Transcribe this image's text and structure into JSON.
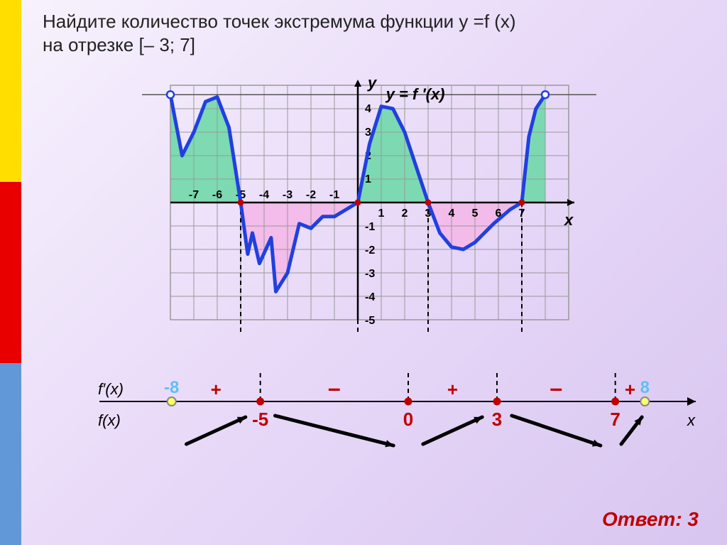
{
  "title_line1": "Найдите количество точек экстремума функции y =f (x)",
  "title_line2": "на отрезке [– 3; 7]",
  "answer": "Ответ: 3",
  "strip_colors": [
    "#ffde00",
    "#e80000",
    "#6098d8"
  ],
  "chart": {
    "type": "line",
    "grid_color": "#999999",
    "bg_color": "#ffffff",
    "curve_color": "#2040e0",
    "curve_width": 5,
    "fill_pos": "#70d8a8",
    "fill_neg": "#f4b8e8",
    "endpoint_open": "#ffffff",
    "endpoint_stroke": "#2040e0",
    "zero_dot": "#c00000",
    "x_range": [
      -8,
      9
    ],
    "y_range": [
      -5,
      5
    ],
    "cell": 33,
    "x_ticks": [
      -7,
      -6,
      -5,
      -4,
      -3,
      -2,
      -1,
      1,
      2,
      3,
      4,
      5,
      6,
      7
    ],
    "y_ticks_pos": [
      1,
      2,
      3,
      4
    ],
    "y_ticks_neg": [
      -1,
      -2,
      -3,
      -4,
      -5
    ],
    "axis_y_label": "y",
    "axis_x_label": "x",
    "curve_label": "y = f ′(x)",
    "curve_points": [
      [
        -8,
        4.6
      ],
      [
        -7.5,
        2.0
      ],
      [
        -7,
        3.0
      ],
      [
        -6.5,
        4.3
      ],
      [
        -6,
        4.5
      ],
      [
        -5.5,
        3.2
      ],
      [
        -5,
        0
      ],
      [
        -4.7,
        -2.2
      ],
      [
        -4.5,
        -1.3
      ],
      [
        -4.2,
        -2.6
      ],
      [
        -3.7,
        -1.5
      ],
      [
        -3.5,
        -3.8
      ],
      [
        -3,
        -3.0
      ],
      [
        -2.5,
        -0.9
      ],
      [
        -2,
        -1.1
      ],
      [
        -1.5,
        -0.6
      ],
      [
        -1,
        -0.6
      ],
      [
        -0.5,
        -0.3
      ],
      [
        0,
        0
      ],
      [
        0.5,
        2.5
      ],
      [
        1,
        4.1
      ],
      [
        1.5,
        4.0
      ],
      [
        2,
        3.0
      ],
      [
        3,
        0
      ],
      [
        3.5,
        -1.3
      ],
      [
        4,
        -1.9
      ],
      [
        4.5,
        -2.0
      ],
      [
        5,
        -1.7
      ],
      [
        5.8,
        -0.9
      ],
      [
        6.5,
        -0.3
      ],
      [
        7,
        0
      ],
      [
        7.3,
        2.8
      ],
      [
        7.6,
        4.0
      ],
      [
        8,
        4.6
      ]
    ],
    "endpoints_open": [
      [
        -8,
        4.6
      ],
      [
        8,
        4.6
      ]
    ],
    "zeros_red": [
      -5,
      0,
      3,
      7
    ],
    "dashed_color": "#000000"
  },
  "number_line": {
    "axis_color": "#000000",
    "deriv_label": "f′(x)",
    "fn_label": "f(x)",
    "x_label": "x",
    "endpoints": [
      {
        "x": -8,
        "label": "-8",
        "color": "#60c0f0",
        "open": true
      },
      {
        "x": 8,
        "label": "8",
        "color": "#60c0f0",
        "open": true
      }
    ],
    "critical": [
      {
        "x": -5,
        "label": "-5",
        "color": "#c00000"
      },
      {
        "x": 0,
        "label": "0",
        "color": "#c00000"
      },
      {
        "x": 3,
        "label": "3",
        "color": "#c00000"
      },
      {
        "x": 7,
        "label": "7",
        "color": "#c00000"
      }
    ],
    "signs": [
      {
        "center": -6.5,
        "sign": "+"
      },
      {
        "center": -2.5,
        "sign": "–"
      },
      {
        "center": 1.5,
        "sign": "+"
      },
      {
        "center": 5.0,
        "sign": "–"
      },
      {
        "center": 7.5,
        "sign": "+"
      }
    ],
    "arrows": [
      {
        "from": -7.5,
        "to": -5.5,
        "dir": "up"
      },
      {
        "from": -4.5,
        "to": -0.5,
        "dir": "down"
      },
      {
        "from": 0.5,
        "to": 2.5,
        "dir": "up"
      },
      {
        "from": 3.5,
        "to": 6.5,
        "dir": "down"
      },
      {
        "from": 7.2,
        "to": 7.9,
        "dir": "up"
      }
    ],
    "open_fill": "#ffff66",
    "closed_fill": "#c00000"
  }
}
